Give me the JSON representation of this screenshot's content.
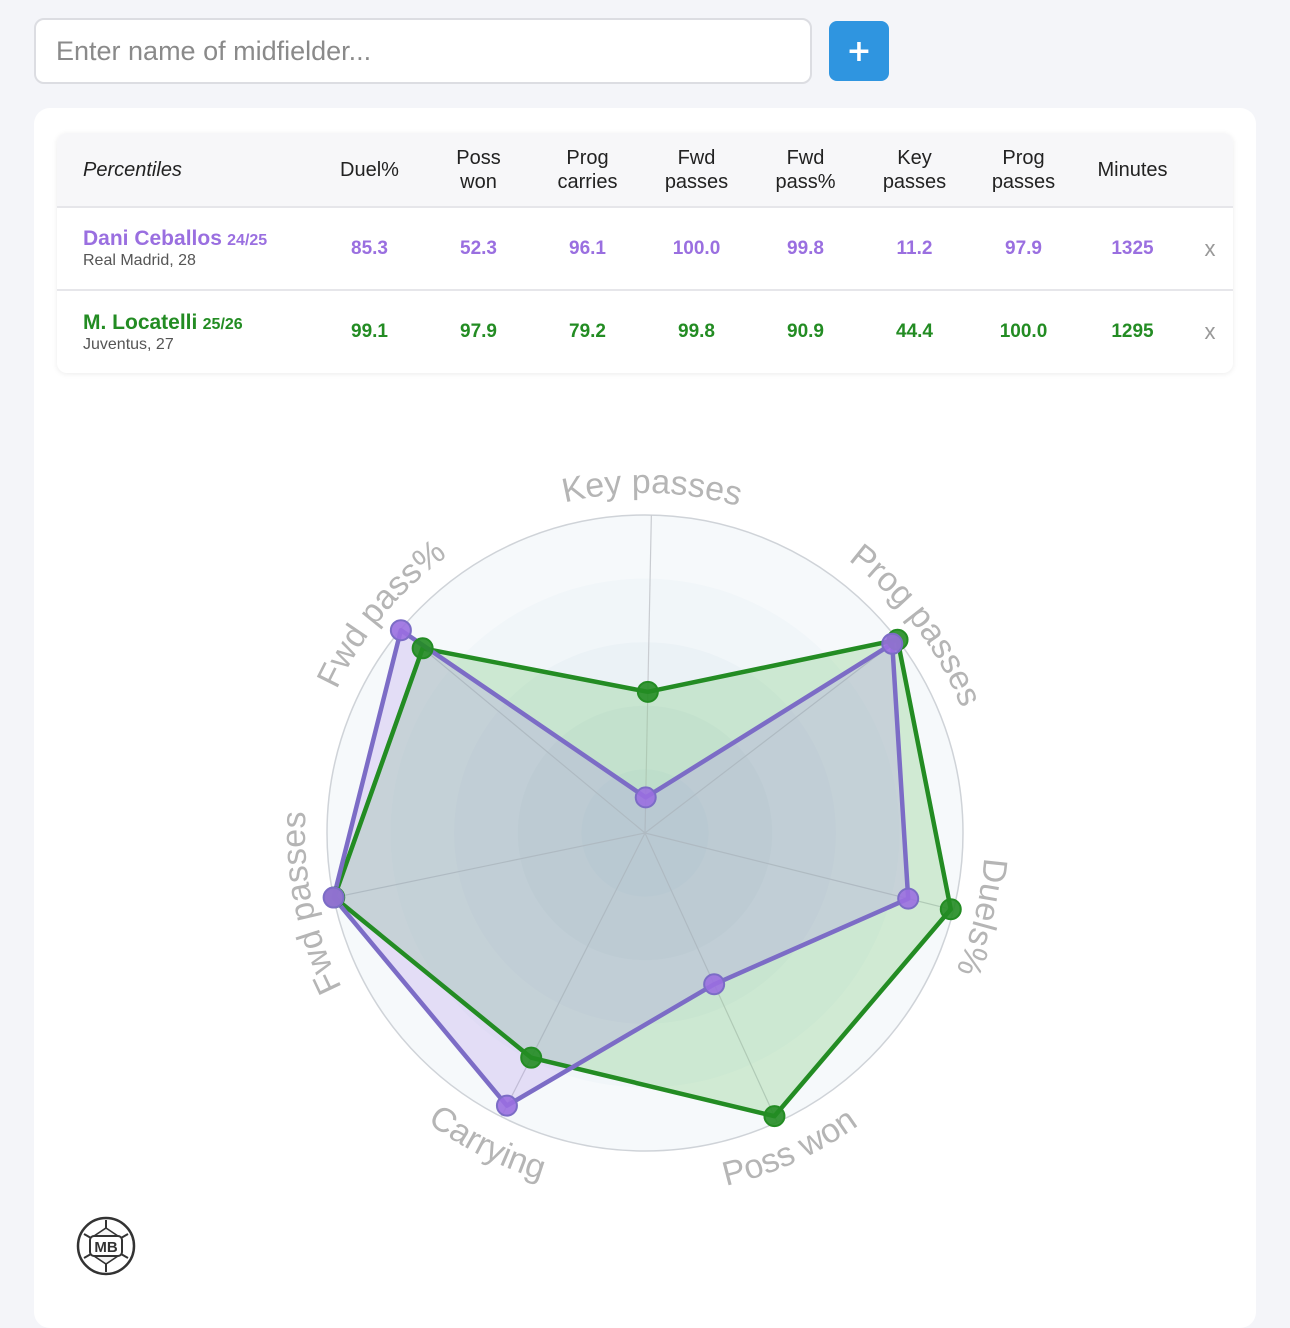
{
  "search": {
    "placeholder": "Enter name of midfielder...",
    "add_label": "+"
  },
  "table": {
    "header_label": "Percentiles",
    "columns": [
      {
        "line1": "Duel%",
        "line2": ""
      },
      {
        "line1": "Poss",
        "line2": "won"
      },
      {
        "line1": "Prog",
        "line2": "carries"
      },
      {
        "line1": "Fwd",
        "line2": "passes"
      },
      {
        "line1": "Fwd",
        "line2": "pass%"
      },
      {
        "line1": "Key",
        "line2": "passes"
      },
      {
        "line1": "Prog",
        "line2": "passes"
      },
      {
        "line1": "Minutes",
        "line2": ""
      }
    ],
    "rows": [
      {
        "name": "Dani Ceballos",
        "season": "24/25",
        "sub": "Real Madrid, 28",
        "color": "#9a6fe0",
        "values": [
          "85.3",
          "52.3",
          "96.1",
          "100.0",
          "99.8",
          "11.2",
          "97.9",
          "1325"
        ],
        "remove": "x"
      },
      {
        "name": "M. Locatelli",
        "season": "25/26",
        "sub": "Juventus, 27",
        "color": "#238c23",
        "values": [
          "99.1",
          "97.9",
          "79.2",
          "99.8",
          "90.9",
          "44.4",
          "100.0",
          "1295"
        ],
        "remove": "x"
      }
    ]
  },
  "chart_data": {
    "type": "radar",
    "axes": [
      "Key passes",
      "Prog passes",
      "Duels%",
      "Poss won",
      "Carrying",
      "Fwd passes",
      "Fwd pass%"
    ],
    "range": [
      0,
      100
    ],
    "series": [
      {
        "name": "Dani Ceballos",
        "color": "#9a6fe0",
        "line_color": "#7c6cc6",
        "fill": "rgba(170,140,230,0.25)",
        "values": [
          11.2,
          97.9,
          85.3,
          52.3,
          96.1,
          100.0,
          99.8
        ]
      },
      {
        "name": "M. Locatelli",
        "color": "#238c23",
        "line_color": "#238c23",
        "fill": "rgba(120,200,120,0.30)",
        "values": [
          44.4,
          100.0,
          99.1,
          97.9,
          79.2,
          99.8,
          90.9
        ]
      }
    ]
  },
  "logo": {
    "text": "MB"
  }
}
